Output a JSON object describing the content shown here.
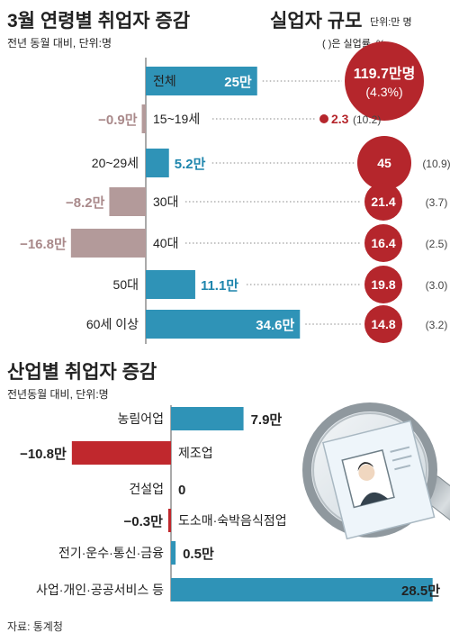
{
  "colors": {
    "blue": "#2f93b7",
    "mauve": "#b39a9a",
    "red": "#c0282d",
    "circle": "#b5262c",
    "blue_text": "#1f86ad",
    "mauve_text": "#a9898a",
    "text": "#222222",
    "gray": "#555555"
  },
  "source": "자료: 통계청",
  "chart_data": [
    {
      "type": "bar",
      "title": "3월 연령별 취업자 증감",
      "subtitle": "전년 동월 대비, 단위:명",
      "categories": [
        "전체",
        "15~19세",
        "20~29세",
        "30대",
        "40대",
        "50대",
        "60세 이상"
      ],
      "values": [
        25,
        -0.9,
        5.2,
        -8.2,
        -16.8,
        11.1,
        34.6
      ],
      "value_labels": [
        "25만",
        "−0.9만",
        "5.2만",
        "−8.2만",
        "−16.8만",
        "11.1만",
        "34.6만"
      ],
      "unemployed": {
        "title": "실업자 규모",
        "unit": "단위:만 명",
        "note": "( )은 실업률, %",
        "values": [
          119.7,
          2.3,
          45,
          21.4,
          16.4,
          19.8,
          14.8
        ],
        "labels": [
          "119.7만명",
          "2.3",
          "45",
          "21.4",
          "16.4",
          "19.8",
          "14.8"
        ],
        "rate_labels": [
          "(4.3%)",
          "(10.2)",
          "(10.9)",
          "(3.7)",
          "(2.5)",
          "(3.0)",
          "(3.2)"
        ]
      }
    },
    {
      "type": "bar",
      "title": "산업별 취업자 증감",
      "subtitle": "전년동월 대비, 단위:명",
      "categories": [
        "농림어업",
        "제조업",
        "건설업",
        "도소매·숙박음식점업",
        "전기·운수·통신·금융",
        "사업·개인·공공서비스 등"
      ],
      "values": [
        7.9,
        -10.8,
        0,
        -0.3,
        0.5,
        28.5
      ],
      "value_labels": [
        "7.9만",
        "−10.8만",
        "0",
        "−0.3만",
        "0.5만",
        "28.5만"
      ]
    }
  ]
}
